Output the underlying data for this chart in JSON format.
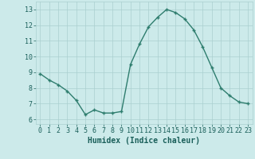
{
  "x": [
    0,
    1,
    2,
    3,
    4,
    5,
    6,
    7,
    8,
    9,
    10,
    11,
    12,
    13,
    14,
    15,
    16,
    17,
    18,
    19,
    20,
    21,
    22,
    23
  ],
  "y": [
    8.9,
    8.5,
    8.2,
    7.8,
    7.2,
    6.3,
    6.6,
    6.4,
    6.4,
    6.5,
    9.5,
    10.8,
    11.9,
    12.5,
    13.0,
    12.8,
    12.4,
    11.7,
    10.6,
    9.3,
    8.0,
    7.5,
    7.1,
    7.0
  ],
  "line_color": "#2e7d6e",
  "marker": "+",
  "marker_size": 3,
  "bg_color": "#cceaea",
  "grid_color": "#aacfcf",
  "xlabel": "Humidex (Indice chaleur)",
  "ylabel_ticks": [
    6,
    7,
    8,
    9,
    10,
    11,
    12,
    13
  ],
  "xtick_labels": [
    "0",
    "1",
    "2",
    "3",
    "4",
    "5",
    "6",
    "7",
    "8",
    "9",
    "10",
    "11",
    "12",
    "13",
    "14",
    "15",
    "16",
    "17",
    "18",
    "19",
    "20",
    "21",
    "22",
    "23"
  ],
  "ylim": [
    5.7,
    13.5
  ],
  "xlim": [
    -0.5,
    23.5
  ],
  "axis_label_color": "#1a5f5a",
  "tick_color": "#1a5f5a",
  "xlabel_fontsize": 7,
  "tick_fontsize": 6,
  "linewidth": 1.0
}
